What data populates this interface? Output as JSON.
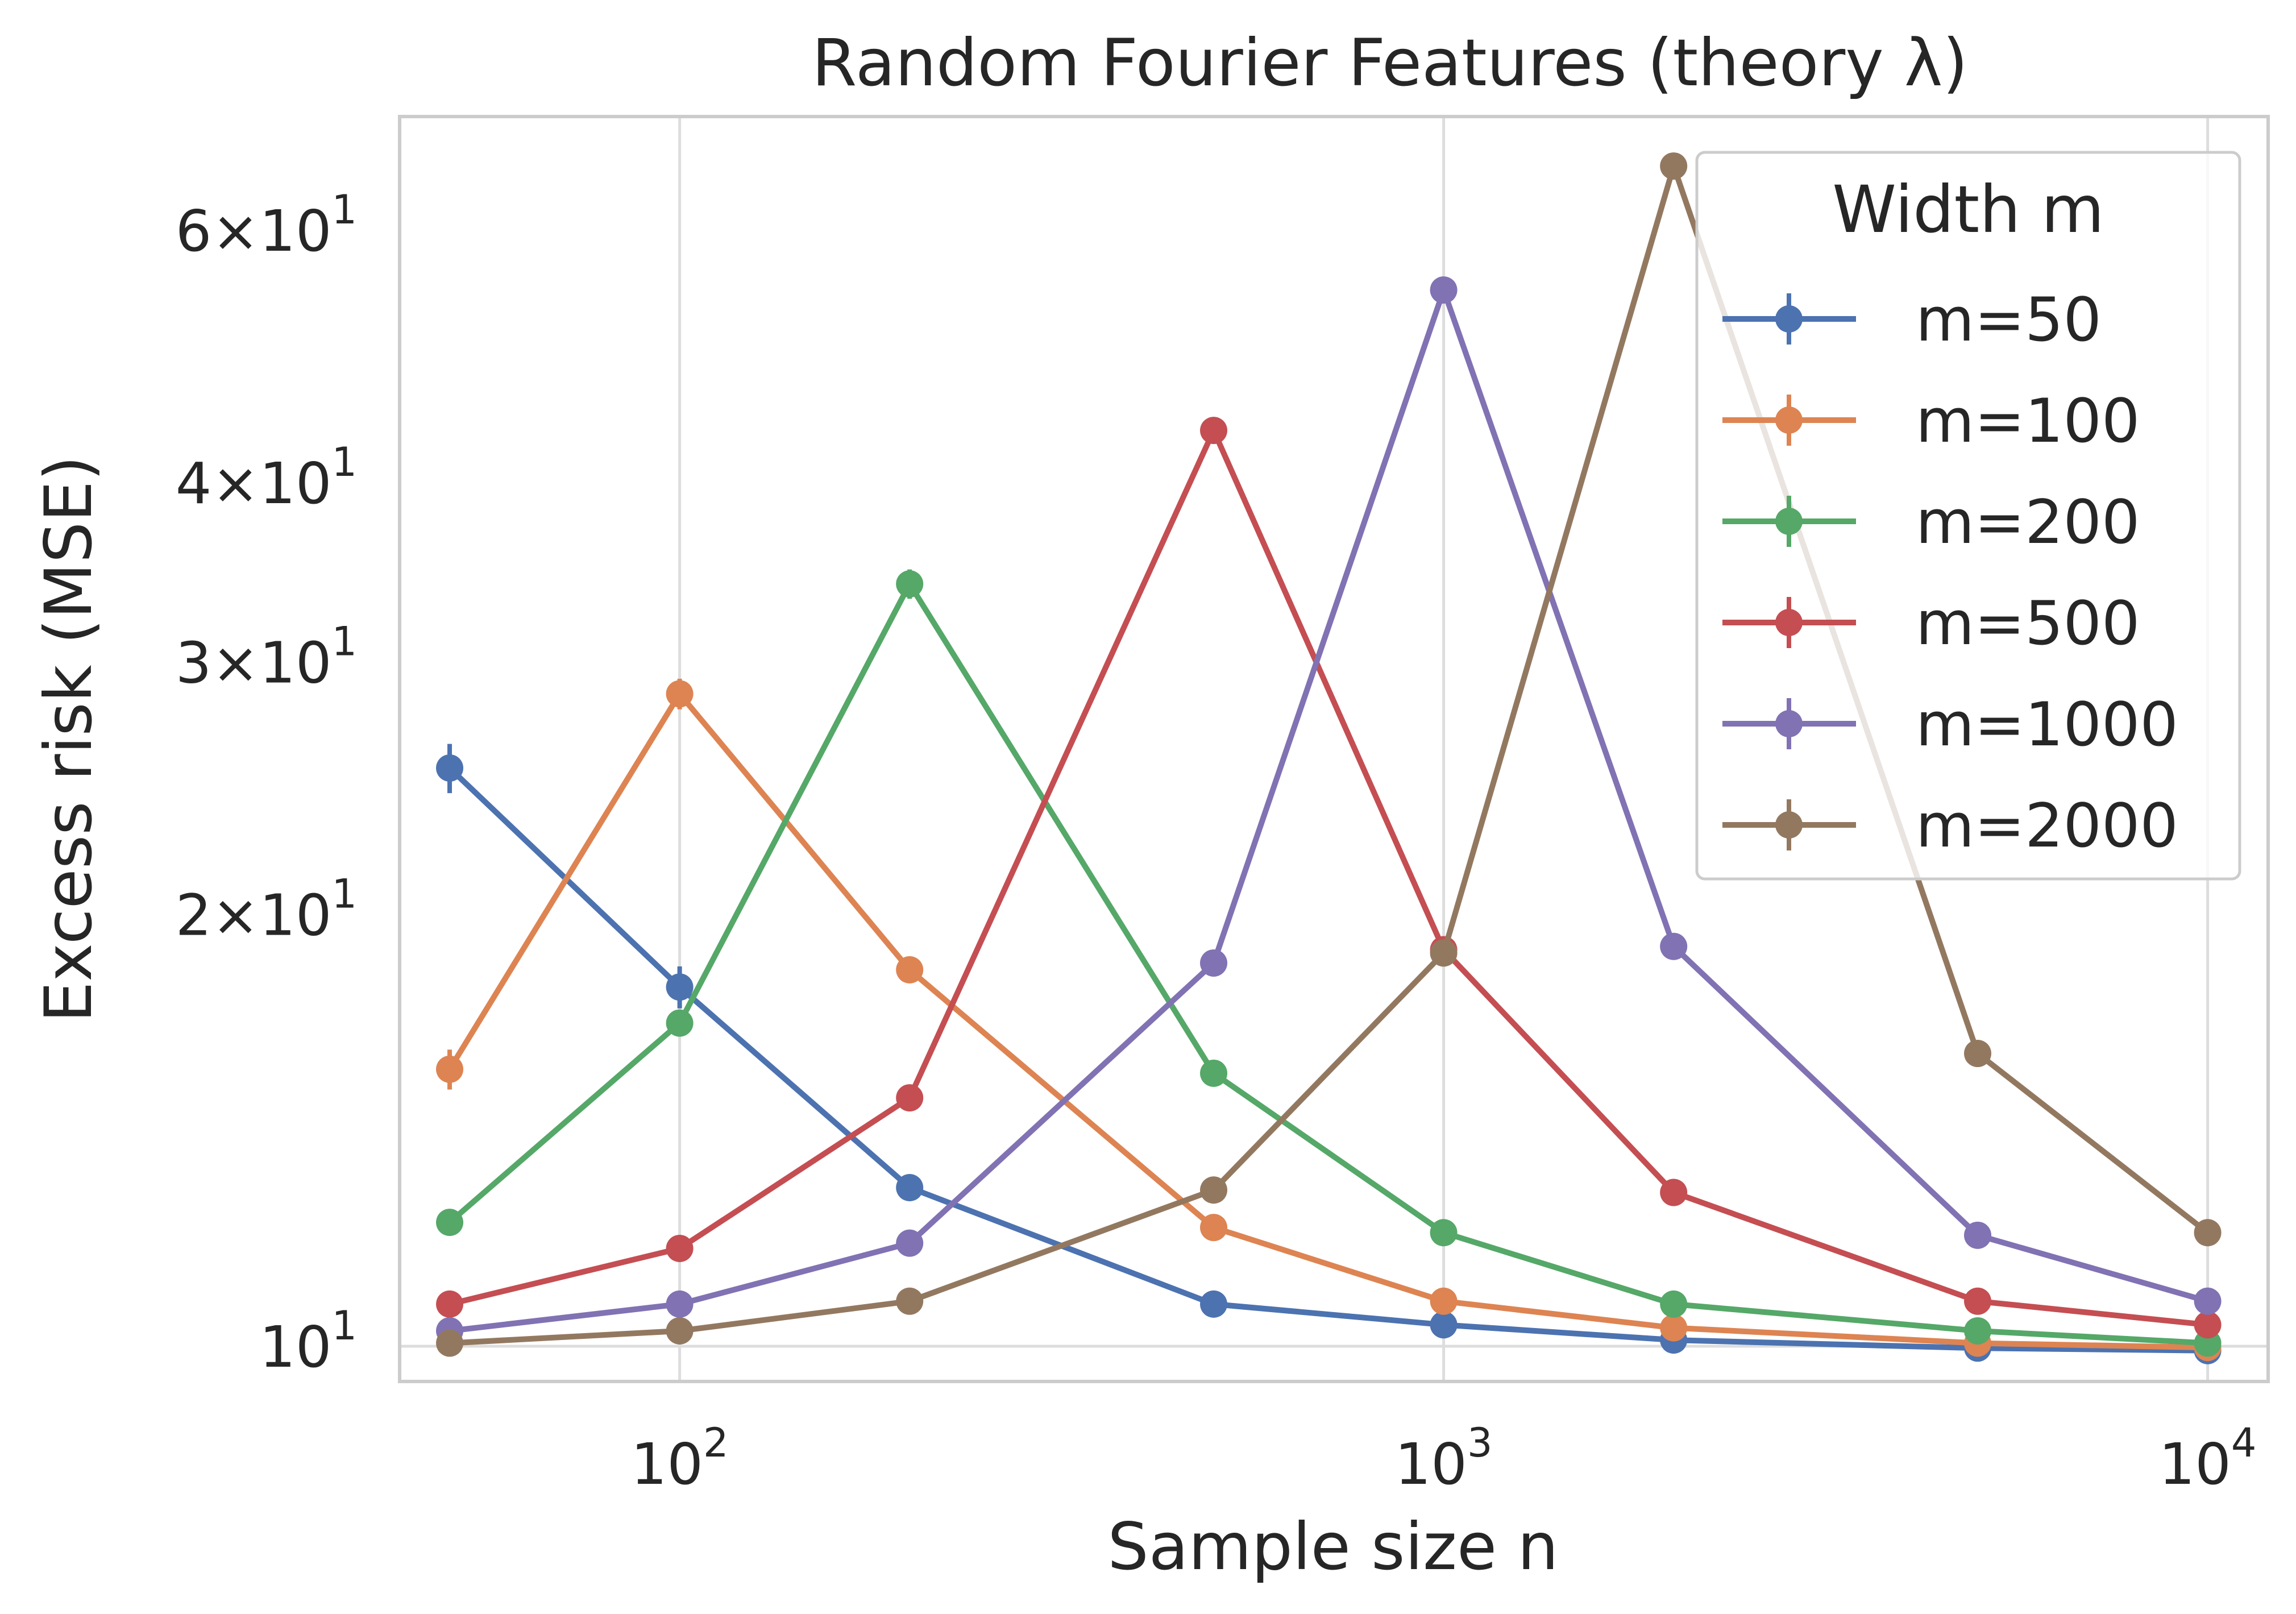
{
  "chart_data": {
    "type": "line",
    "title": "Random Fourier Features (theory λ)",
    "xlabel": "Sample size n",
    "ylabel": "Excess risk (MSE)",
    "x_scale": "log",
    "y_scale": "log",
    "xlim": [
      43,
      12000
    ],
    "ylim": [
      9.45,
      72
    ],
    "grid": true,
    "x_ticks": [
      {
        "value": 100,
        "base": "10",
        "exp": "2"
      },
      {
        "value": 1000,
        "base": "10",
        "exp": "3"
      },
      {
        "value": 10000,
        "base": "10",
        "exp": "4"
      }
    ],
    "y_ticks": [
      {
        "value": 10,
        "mant": "",
        "base": "10",
        "exp": "1"
      },
      {
        "value": 20,
        "mant": "2",
        "base": "10",
        "exp": "1"
      },
      {
        "value": 30,
        "mant": "3",
        "base": "10",
        "exp": "1"
      },
      {
        "value": 40,
        "mant": "4",
        "base": "10",
        "exp": "1"
      },
      {
        "value": 60,
        "mant": "6",
        "base": "10",
        "exp": "1"
      }
    ],
    "legend": {
      "title": "Width m",
      "position": "top-right"
    },
    "x": [
      50,
      100,
      200,
      500,
      1000,
      2000,
      5000,
      10000
    ],
    "series": [
      {
        "name": "m=50",
        "color": "#4c72b0",
        "values": [
          25.3,
          17.8,
          12.9,
          10.7,
          10.35,
          10.1,
          9.97,
          9.93
        ],
        "err": [
          1.0,
          0.6,
          0.2,
          0.1,
          0.08,
          0.05,
          0.03,
          0.03
        ]
      },
      {
        "name": "m=100",
        "color": "#dd8452",
        "values": [
          15.6,
          28.5,
          18.3,
          12.1,
          10.75,
          10.3,
          10.05,
          9.98
        ],
        "err": [
          0.5,
          0.7,
          0.3,
          0.2,
          0.1,
          0.05,
          0.03,
          0.03
        ]
      },
      {
        "name": "m=200",
        "color": "#55a868",
        "values": [
          12.2,
          16.8,
          34.0,
          15.5,
          12.0,
          10.7,
          10.25,
          10.05
        ],
        "err": [
          0.2,
          0.3,
          0.8,
          0.2,
          0.15,
          0.08,
          0.05,
          0.04
        ]
      },
      {
        "name": "m=500",
        "color": "#c44e52",
        "values": [
          10.7,
          11.7,
          14.9,
          43.5,
          18.9,
          12.8,
          10.75,
          10.35
        ],
        "err": [
          0.1,
          0.15,
          0.2,
          0.6,
          0.3,
          0.15,
          0.08,
          0.05
        ]
      },
      {
        "name": "m=1000",
        "color": "#8172b3",
        "values": [
          10.25,
          10.7,
          11.8,
          18.5,
          54.5,
          19.0,
          11.95,
          10.75
        ],
        "err": [
          0.08,
          0.1,
          0.15,
          0.3,
          0.8,
          0.3,
          0.12,
          0.08
        ]
      },
      {
        "name": "m=2000",
        "color": "#937860",
        "values": [
          10.05,
          10.25,
          10.75,
          12.85,
          18.8,
          66.5,
          16.0,
          12.0
        ],
        "err": [
          0.05,
          0.06,
          0.08,
          0.15,
          0.3,
          1.0,
          0.2,
          0.12
        ]
      }
    ]
  }
}
